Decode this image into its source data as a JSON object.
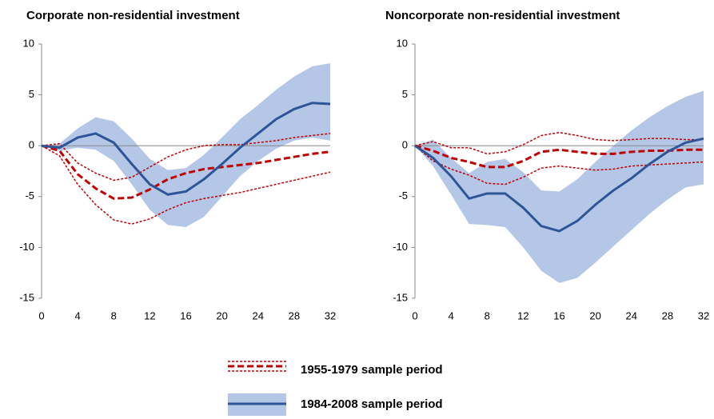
{
  "chart_data": [
    {
      "type": "line",
      "title": "Corporate non-residential investment",
      "x": [
        0,
        2,
        4,
        6,
        8,
        10,
        12,
        14,
        16,
        18,
        20,
        22,
        24,
        26,
        28,
        30,
        32
      ],
      "xlim": [
        0,
        32
      ],
      "xticks": [
        0,
        4,
        8,
        12,
        16,
        20,
        24,
        28,
        32
      ],
      "ylim": [
        -15,
        10
      ],
      "yticks": [
        -15,
        -10,
        -5,
        0,
        5,
        10
      ],
      "series": [
        {
          "name": "1955-1979 sample period",
          "color": "#c00000",
          "line_style": "dashed",
          "band_style": "dashed",
          "values": [
            0,
            -0.5,
            -2.8,
            -4.2,
            -5.2,
            -5.1,
            -4.3,
            -3.3,
            -2.7,
            -2.3,
            -2.1,
            -1.9,
            -1.7,
            -1.4,
            -1.1,
            -0.8,
            -0.6
          ],
          "lower": [
            0,
            -1.0,
            -3.8,
            -5.8,
            -7.3,
            -7.7,
            -7.2,
            -6.3,
            -5.6,
            -5.2,
            -4.9,
            -4.6,
            -4.2,
            -3.8,
            -3.4,
            -3.0,
            -2.6
          ],
          "upper": [
            0,
            0.2,
            -1.7,
            -2.7,
            -3.4,
            -3.1,
            -2.1,
            -1.1,
            -0.4,
            0,
            0.1,
            0.1,
            0.3,
            0.5,
            0.8,
            1.0,
            1.2
          ]
        },
        {
          "name": "1984-2008 sample period",
          "color": "#2e5597",
          "line_style": "solid",
          "band_style": "fill",
          "band_color": "#b4c7e7",
          "values": [
            0,
            -0.2,
            0.8,
            1.2,
            0.3,
            -1.8,
            -3.8,
            -4.8,
            -4.5,
            -3.3,
            -1.8,
            -0.2,
            1.2,
            2.6,
            3.6,
            4.2,
            4.1
          ],
          "lower": [
            0,
            -0.5,
            -0.2,
            -0.4,
            -1.5,
            -3.8,
            -6.3,
            -7.8,
            -8.0,
            -7.0,
            -5.0,
            -3.0,
            -1.5,
            -0.3,
            0.5,
            0.8,
            0.5
          ],
          "upper": [
            0,
            0.2,
            1.7,
            2.8,
            2.4,
            0.7,
            -1.3,
            -2.4,
            -2.2,
            -0.9,
            0.8,
            2.6,
            4.0,
            5.5,
            6.8,
            7.8,
            8.1
          ]
        }
      ]
    },
    {
      "type": "line",
      "title": "Noncorporate non-residential investment",
      "x": [
        0,
        2,
        4,
        6,
        8,
        10,
        12,
        14,
        16,
        18,
        20,
        22,
        24,
        26,
        28,
        30,
        32
      ],
      "xlim": [
        0,
        32
      ],
      "xticks": [
        0,
        4,
        8,
        12,
        16,
        20,
        24,
        28,
        32
      ],
      "ylim": [
        -15,
        10
      ],
      "yticks": [
        -15,
        -10,
        -5,
        0,
        5,
        10
      ],
      "series": [
        {
          "color": "#c00000",
          "line_style": "dashed",
          "band_style": "dashed",
          "values": [
            0,
            -0.5,
            -1.2,
            -1.6,
            -2.1,
            -2.1,
            -1.5,
            -0.6,
            -0.4,
            -0.6,
            -0.8,
            -0.8,
            -0.6,
            -0.5,
            -0.5,
            -0.4,
            -0.4
          ],
          "lower": [
            0,
            -1.5,
            -2.3,
            -2.9,
            -3.7,
            -3.8,
            -3.1,
            -2.2,
            -2.0,
            -2.2,
            -2.4,
            -2.3,
            -2.0,
            -1.9,
            -1.8,
            -1.7,
            -1.6
          ],
          "upper": [
            0,
            0.4,
            -0.2,
            -0.2,
            -0.8,
            -0.6,
            0.1,
            1.0,
            1.3,
            1.0,
            0.6,
            0.5,
            0.6,
            0.7,
            0.7,
            0.6,
            0.6
          ]
        },
        {
          "color": "#2e5597",
          "line_style": "solid",
          "band_style": "fill",
          "band_color": "#b4c7e7",
          "values": [
            0,
            -1.2,
            -3.0,
            -5.2,
            -4.7,
            -4.7,
            -6.1,
            -7.9,
            -8.4,
            -7.4,
            -5.8,
            -4.4,
            -3.2,
            -1.8,
            -0.6,
            0.3,
            0.7
          ],
          "lower": [
            0,
            -2.0,
            -4.8,
            -7.7,
            -7.8,
            -8.0,
            -10.0,
            -12.3,
            -13.5,
            -13.0,
            -11.5,
            -9.9,
            -8.3,
            -6.7,
            -5.3,
            -4.1,
            -3.8
          ],
          "upper": [
            0,
            0.6,
            -1.2,
            -2.7,
            -1.6,
            -1.3,
            -2.6,
            -4.4,
            -4.5,
            -3.3,
            -1.6,
            0,
            1.5,
            2.8,
            3.9,
            4.8,
            5.4
          ]
        }
      ]
    }
  ]
}
